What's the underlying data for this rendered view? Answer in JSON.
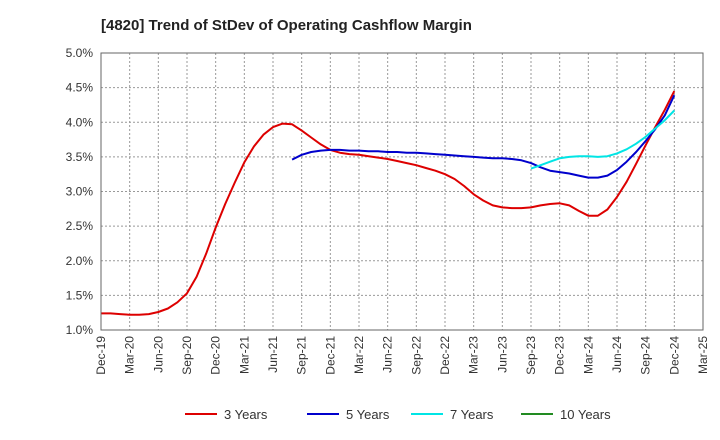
{
  "chart_data": {
    "type": "line",
    "title": "[4820]  Trend of StDev of Operating Cashflow Margin",
    "xlabel": "",
    "ylabel": "",
    "x_tick_labels": [
      "Dec-19",
      "Mar-20",
      "Jun-20",
      "Sep-20",
      "Dec-20",
      "Mar-21",
      "Jun-21",
      "Sep-21",
      "Dec-21",
      "Mar-22",
      "Jun-22",
      "Sep-22",
      "Dec-22",
      "Mar-23",
      "Jun-23",
      "Sep-23",
      "Dec-23",
      "Mar-24",
      "Jun-24",
      "Sep-24",
      "Dec-24",
      "Mar-25"
    ],
    "y_tick_labels": [
      "1.0%",
      "1.5%",
      "2.0%",
      "2.5%",
      "3.0%",
      "3.5%",
      "4.0%",
      "4.5%",
      "5.0%"
    ],
    "ylim": [
      1.0,
      5.0
    ],
    "y_unit": "%",
    "grid": true,
    "legend_position": "bottom",
    "series": [
      {
        "name": "3 Years",
        "color": "#dd0000",
        "points": [
          [
            "Dec-19",
            1.24
          ],
          [
            "Jan-20",
            1.24
          ],
          [
            "Feb-20",
            1.23
          ],
          [
            "Mar-20",
            1.22
          ],
          [
            "Apr-20",
            1.22
          ],
          [
            "May-20",
            1.23
          ],
          [
            "Jun-20",
            1.26
          ],
          [
            "Jul-20",
            1.31
          ],
          [
            "Aug-20",
            1.4
          ],
          [
            "Sep-20",
            1.53
          ],
          [
            "Oct-20",
            1.77
          ],
          [
            "Nov-20",
            2.1
          ],
          [
            "Dec-20",
            2.48
          ],
          [
            "Jan-21",
            2.82
          ],
          [
            "Feb-21",
            3.13
          ],
          [
            "Mar-21",
            3.42
          ],
          [
            "Apr-21",
            3.65
          ],
          [
            "May-21",
            3.82
          ],
          [
            "Jun-21",
            3.93
          ],
          [
            "Jul-21",
            3.98
          ],
          [
            "Aug-21",
            3.97
          ],
          [
            "Sep-21",
            3.88
          ],
          [
            "Oct-21",
            3.78
          ],
          [
            "Nov-21",
            3.68
          ],
          [
            "Dec-21",
            3.6
          ],
          [
            "Jan-22",
            3.56
          ],
          [
            "Feb-22",
            3.54
          ],
          [
            "Mar-22",
            3.53
          ],
          [
            "Apr-22",
            3.51
          ],
          [
            "May-22",
            3.49
          ],
          [
            "Jun-22",
            3.47
          ],
          [
            "Jul-22",
            3.44
          ],
          [
            "Aug-22",
            3.41
          ],
          [
            "Sep-22",
            3.38
          ],
          [
            "Oct-22",
            3.34
          ],
          [
            "Nov-22",
            3.3
          ],
          [
            "Dec-22",
            3.25
          ],
          [
            "Jan-23",
            3.18
          ],
          [
            "Feb-23",
            3.08
          ],
          [
            "Mar-23",
            2.96
          ],
          [
            "Apr-23",
            2.87
          ],
          [
            "May-23",
            2.8
          ],
          [
            "Jun-23",
            2.77
          ],
          [
            "Jul-23",
            2.76
          ],
          [
            "Aug-23",
            2.76
          ],
          [
            "Sep-23",
            2.77
          ],
          [
            "Oct-23",
            2.8
          ],
          [
            "Nov-23",
            2.82
          ],
          [
            "Dec-23",
            2.83
          ],
          [
            "Jan-24",
            2.8
          ],
          [
            "Feb-24",
            2.72
          ],
          [
            "Mar-24",
            2.65
          ],
          [
            "Apr-24",
            2.65
          ],
          [
            "May-24",
            2.74
          ],
          [
            "Jun-24",
            2.92
          ],
          [
            "Jul-24",
            3.14
          ],
          [
            "Aug-24",
            3.4
          ],
          [
            "Sep-24",
            3.67
          ],
          [
            "Oct-24",
            3.93
          ],
          [
            "Nov-24",
            4.18
          ],
          [
            "Dec-24",
            4.45
          ]
        ]
      },
      {
        "name": "5 Years",
        "color": "#0000cc",
        "points": [
          [
            "Aug-21",
            3.46
          ],
          [
            "Sep-21",
            3.53
          ],
          [
            "Oct-21",
            3.57
          ],
          [
            "Nov-21",
            3.59
          ],
          [
            "Dec-21",
            3.6
          ],
          [
            "Jan-22",
            3.6
          ],
          [
            "Feb-22",
            3.59
          ],
          [
            "Mar-22",
            3.59
          ],
          [
            "Apr-22",
            3.58
          ],
          [
            "May-22",
            3.58
          ],
          [
            "Jun-22",
            3.57
          ],
          [
            "Jul-22",
            3.57
          ],
          [
            "Aug-22",
            3.56
          ],
          [
            "Sep-22",
            3.56
          ],
          [
            "Oct-22",
            3.55
          ],
          [
            "Nov-22",
            3.54
          ],
          [
            "Dec-22",
            3.53
          ],
          [
            "Jan-23",
            3.52
          ],
          [
            "Feb-23",
            3.51
          ],
          [
            "Mar-23",
            3.5
          ],
          [
            "Apr-23",
            3.49
          ],
          [
            "May-23",
            3.48
          ],
          [
            "Jun-23",
            3.48
          ],
          [
            "Jul-23",
            3.47
          ],
          [
            "Aug-23",
            3.45
          ],
          [
            "Sep-23",
            3.41
          ],
          [
            "Oct-23",
            3.35
          ],
          [
            "Nov-23",
            3.3
          ],
          [
            "Dec-23",
            3.28
          ],
          [
            "Jan-24",
            3.26
          ],
          [
            "Feb-24",
            3.23
          ],
          [
            "Mar-24",
            3.2
          ],
          [
            "Apr-24",
            3.2
          ],
          [
            "May-24",
            3.23
          ],
          [
            "Jun-24",
            3.31
          ],
          [
            "Jul-24",
            3.43
          ],
          [
            "Aug-24",
            3.57
          ],
          [
            "Sep-24",
            3.73
          ],
          [
            "Oct-24",
            3.9
          ],
          [
            "Nov-24",
            4.1
          ],
          [
            "Dec-24",
            4.39
          ]
        ]
      },
      {
        "name": "7 Years",
        "color": "#00e5e5",
        "points": [
          [
            "Sep-23",
            3.33
          ],
          [
            "Oct-23",
            3.38
          ],
          [
            "Nov-23",
            3.43
          ],
          [
            "Dec-23",
            3.48
          ],
          [
            "Jan-24",
            3.5
          ],
          [
            "Feb-24",
            3.51
          ],
          [
            "Mar-24",
            3.51
          ],
          [
            "Apr-24",
            3.5
          ],
          [
            "May-24",
            3.51
          ],
          [
            "Jun-24",
            3.55
          ],
          [
            "Jul-24",
            3.61
          ],
          [
            "Aug-24",
            3.69
          ],
          [
            "Sep-24",
            3.79
          ],
          [
            "Oct-24",
            3.91
          ],
          [
            "Nov-24",
            4.03
          ],
          [
            "Dec-24",
            4.17
          ]
        ]
      },
      {
        "name": "10 Years",
        "color": "#228b22",
        "points": []
      }
    ]
  }
}
